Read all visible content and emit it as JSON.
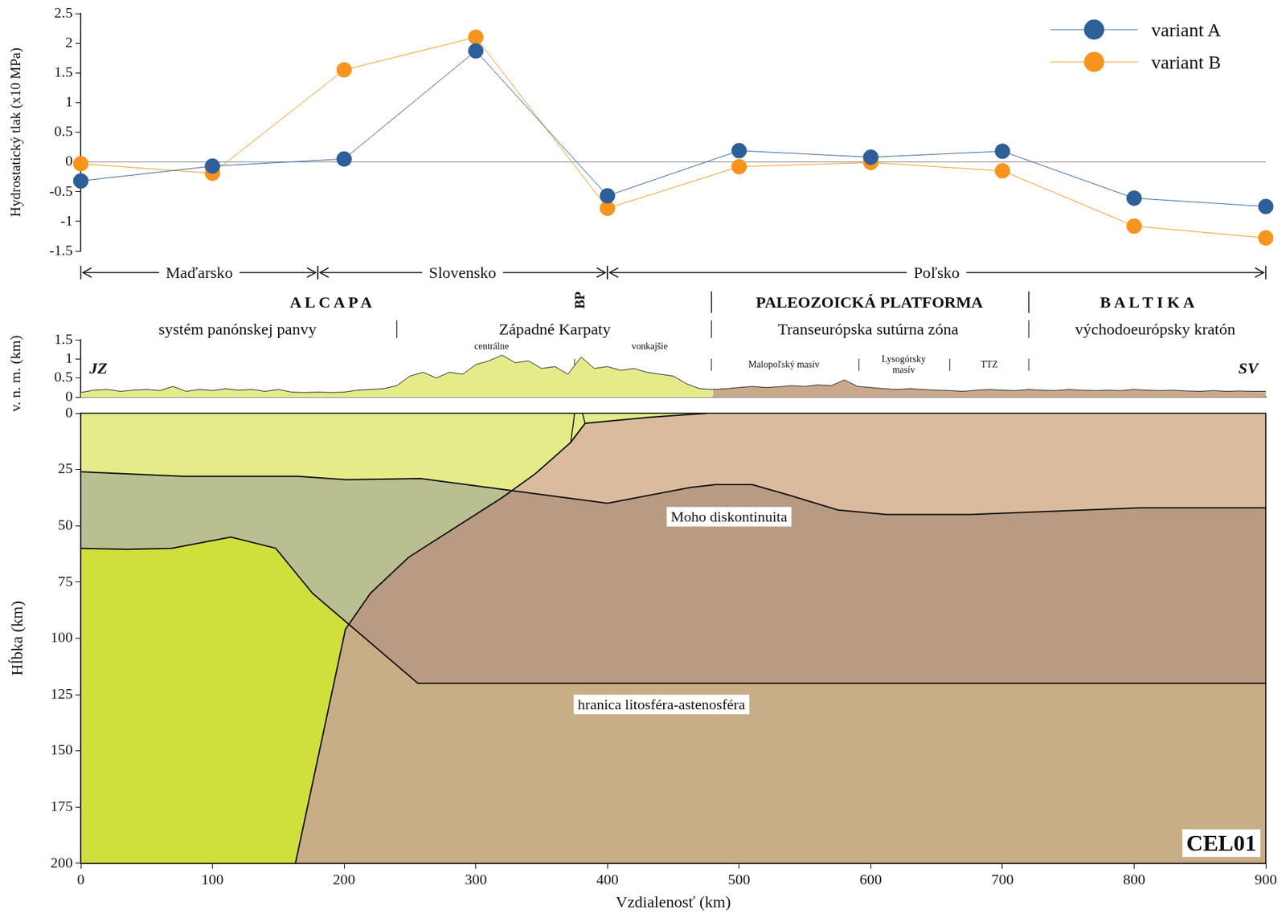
{
  "chart_data": [
    {
      "type": "line",
      "y_label": "Hydrostatický tlak (x10 MPa)",
      "x": [
        0,
        100,
        200,
        300,
        400,
        500,
        600,
        700,
        800,
        900
      ],
      "xlim": [
        0,
        900
      ],
      "ylim": [
        -1.5,
        2.5
      ],
      "yticks": [
        -1.5,
        -1,
        -0.5,
        0,
        0.5,
        1,
        1.5,
        2,
        2.5
      ],
      "hline": 0,
      "grid": false,
      "tick_labels": "y",
      "legend": "upper right",
      "marker": "circle",
      "series": [
        {
          "name": "variant A",
          "color": "#2f5f98",
          "values": [
            -0.32,
            -0.07,
            0.05,
            1.87,
            -0.57,
            0.19,
            0.08,
            0.18,
            -0.61,
            -0.75
          ]
        },
        {
          "name": "variant B",
          "color": "#f7941d",
          "values": [
            -0.03,
            -0.19,
            1.55,
            2.1,
            -0.78,
            -0.08,
            -0.01,
            -0.15,
            -1.08,
            -1.28
          ]
        }
      ]
    },
    {
      "type": "area",
      "y_label": "v. n. m. (km)",
      "x": [
        0,
        10,
        20,
        30,
        40,
        50,
        60,
        70,
        80,
        90,
        100,
        110,
        120,
        130,
        140,
        150,
        160,
        170,
        180,
        190,
        200,
        210,
        220,
        230,
        240,
        250,
        260,
        270,
        280,
        290,
        300,
        310,
        320,
        330,
        340,
        350,
        360,
        370,
        380,
        390,
        400,
        410,
        420,
        430,
        440,
        450,
        460,
        470,
        480,
        490,
        500,
        510,
        520,
        530,
        540,
        550,
        560,
        570,
        580,
        590,
        600,
        610,
        620,
        630,
        640,
        650,
        660,
        670,
        680,
        690,
        700,
        710,
        720,
        730,
        740,
        750,
        760,
        770,
        780,
        790,
        800,
        810,
        820,
        830,
        840,
        850,
        860,
        870,
        880,
        890,
        900
      ],
      "xlim": [
        0,
        900
      ],
      "ylim": [
        0,
        1.5
      ],
      "yticks": [
        0,
        0.5,
        1,
        1.5
      ],
      "grid": false,
      "tick_labels": "y",
      "series": [
        {
          "color": "#e4eb89",
          "values": [
            0.12,
            0.18,
            0.2,
            0.15,
            0.18,
            0.2,
            0.17,
            0.28,
            0.15,
            0.2,
            0.17,
            0.22,
            0.18,
            0.2,
            0.15,
            0.2,
            0.13,
            0.12,
            0.13,
            0.12,
            0.13,
            0.18,
            0.2,
            0.22,
            0.3,
            0.55,
            0.65,
            0.5,
            0.65,
            0.6,
            0.85,
            0.95,
            1.1,
            0.9,
            0.95,
            0.75,
            0.8,
            0.6,
            1.05,
            0.75,
            0.8,
            0.7,
            0.75,
            0.65,
            0.6,
            0.55,
            0.35,
            0.22,
            0.2,
            null,
            null,
            null,
            null,
            null,
            null,
            null,
            null,
            null,
            null,
            null,
            null,
            null,
            null,
            null,
            null,
            null,
            null,
            null,
            null,
            null,
            null,
            null,
            null,
            null,
            null,
            null,
            null,
            null,
            null,
            null,
            null,
            null,
            null,
            null,
            null,
            null,
            null,
            null,
            null,
            null,
            null
          ]
        },
        {
          "color": "#c9a98b",
          "values": [
            null,
            null,
            null,
            null,
            null,
            null,
            null,
            null,
            null,
            null,
            null,
            null,
            null,
            null,
            null,
            null,
            null,
            null,
            null,
            null,
            null,
            null,
            null,
            null,
            null,
            null,
            null,
            null,
            null,
            null,
            null,
            null,
            null,
            null,
            null,
            null,
            null,
            null,
            null,
            null,
            null,
            null,
            null,
            null,
            null,
            null,
            null,
            null,
            0.2,
            0.22,
            0.25,
            0.28,
            0.25,
            0.27,
            0.3,
            0.28,
            0.32,
            0.3,
            0.45,
            0.28,
            0.25,
            0.22,
            0.2,
            0.22,
            0.2,
            0.18,
            0.17,
            0.15,
            0.18,
            0.2,
            0.18,
            0.17,
            0.2,
            0.18,
            0.17,
            0.2,
            0.18,
            0.17,
            0.18,
            0.17,
            0.2,
            0.18,
            0.17,
            0.18,
            0.16,
            0.15,
            0.17,
            0.15,
            0.16,
            0.15,
            0.15
          ]
        }
      ],
      "lines": [
        {
          "x": [
            375,
            375
          ],
          "y": [
            0,
            1
          ]
        },
        {
          "x": [
            381,
            381
          ],
          "y": [
            0,
            1
          ]
        }
      ],
      "ends": [
        "JZ",
        "SV"
      ],
      "small_labels": [
        {
          "text": "centrálne",
          "x": 312
        },
        {
          "text": "vonkajšie",
          "x": 432
        },
        {
          "text": "Malopoľský masív",
          "x": 534
        },
        {
          "text": "Lysogórsky masív",
          "x": 625
        },
        {
          "text": "TTZ",
          "x": 690
        }
      ],
      "small_dividers": [
        479,
        591,
        660,
        720
      ]
    },
    {
      "type": "section",
      "x_label": "Vzdialenosť (km)",
      "y_label": "Hĺbka (km)",
      "xlim": [
        0,
        900
      ],
      "ylim": [
        200,
        0
      ],
      "xticks": [
        0,
        100,
        200,
        300,
        400,
        500,
        600,
        700,
        800,
        900
      ],
      "yticks": [
        0,
        25,
        50,
        75,
        100,
        125,
        150,
        175,
        200
      ],
      "grid": false,
      "label": "CEL01",
      "colors": [
        [
          "#cfe03c",
          "#b9bf90",
          "#e4eb89"
        ],
        [
          "#c8ae86",
          "#b99a82",
          "#dbbb9e"
        ]
      ],
      "boundaries": [
        {
          "x": [
            476,
            432,
            383,
            372,
            345,
            320,
            249,
            220,
            201,
            163
          ],
          "y": [
            0,
            1.8,
            4.5,
            13,
            27,
            37.5,
            64,
            80,
            96,
            200
          ]
        },
        {
          "label": "Moho diskontinuita",
          "x": [
            0,
            78,
            165,
            202,
            258,
            400,
            463,
            482,
            510,
            538,
            575,
            612,
            675,
            805,
            900
          ],
          "y": [
            26,
            28,
            28,
            29.5,
            29,
            40,
            33,
            31.7,
            31.7,
            36.4,
            43,
            45,
            45,
            42,
            42
          ]
        },
        {
          "label": "hranica litosféra-astenosféra",
          "x": [
            0,
            35,
            69,
            114,
            148,
            176,
            256,
            900
          ],
          "y": [
            60,
            60.5,
            60,
            55,
            60,
            80,
            120,
            120
          ]
        },
        {
          "x": [
            375,
            374,
            372
          ],
          "y": [
            0,
            5,
            13
          ]
        },
        {
          "x": [
            381,
            383
          ],
          "y": [
            0,
            4.5
          ]
        }
      ]
    }
  ],
  "annotations": {
    "countries": [
      {
        "text": "Maďarsko",
        "from": 0,
        "to": 180
      },
      {
        "text": "Slovensko",
        "from": 180,
        "to": 400
      },
      {
        "text": "Poľsko",
        "from": 400,
        "to": 900
      }
    ],
    "units": [
      {
        "text": "A L C A P A",
        "x": 190
      },
      {
        "text": "PALEOZOICKÁ PLATFORMA",
        "x": 599
      },
      {
        "text": "B A L T I K A",
        "x": 810
      }
    ],
    "unit_dividers": [
      479,
      720
    ],
    "subunits": [
      {
        "text": "systém panónskej panvy",
        "x": 119
      },
      {
        "text": "Západné Karpaty",
        "x": 360
      },
      {
        "text": "Transeurópska sutúrna zóna",
        "x": 598
      },
      {
        "text": "východoeurópsky kratón",
        "x": 816
      }
    ],
    "subunit_dividers": [
      240,
      479,
      720
    ],
    "bp": {
      "text": "BP",
      "x": 379
    }
  }
}
